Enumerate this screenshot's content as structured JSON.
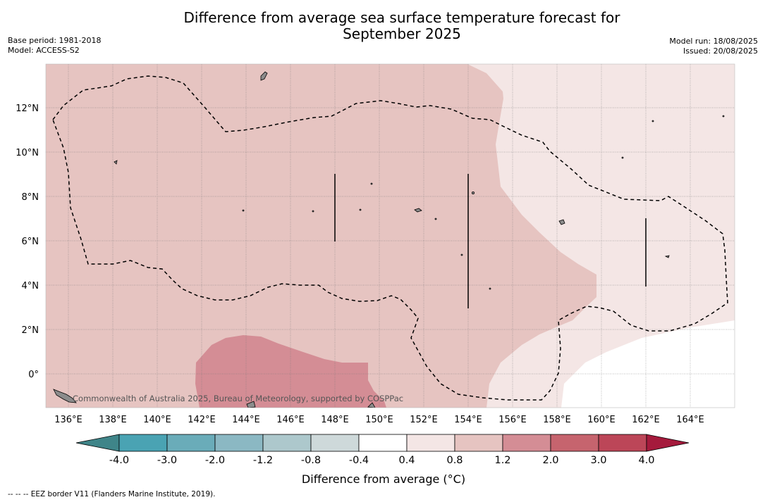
{
  "header": {
    "title_line1": "Difference from average sea surface temperature forecast for",
    "title_line2": "September 2025",
    "base_period": "Base period: 1981-2018",
    "model": "Model: ACCESS-S2",
    "model_run": "Model run: 18/08/2025",
    "issued": "Issued: 20/08/2025"
  },
  "map": {
    "lat_labels": [
      "12°N",
      "10°N",
      "8°N",
      "6°N",
      "4°N",
      "2°N",
      "0°"
    ],
    "lon_labels": [
      "136°E",
      "138°E",
      "140°E",
      "142°E",
      "144°E",
      "146°E",
      "148°E",
      "150°E",
      "152°E",
      "154°E",
      "156°E",
      "158°E",
      "160°E",
      "162°E",
      "164°E"
    ],
    "copyright": "Commonwealth of Australia 2025, Bureau of Meteorology, supported by COSPPac",
    "colors": {
      "anomaly_0_4_to_0_8": "#f4e6e5",
      "anomaly_0_8_to_1_2": "#e6c4c1",
      "anomaly_1_2_to_2_0": "#d48d95",
      "land": "#8c8c8c",
      "eez_border": "#000000"
    }
  },
  "colorbar": {
    "tick_labels": [
      "-4.0",
      "-3.0",
      "-2.0",
      "-1.2",
      "-0.8",
      "-0.4",
      "0.4",
      "0.8",
      "1.2",
      "2.0",
      "3.0",
      "4.0"
    ],
    "colors": [
      "#3f8589",
      "#4aa3b3",
      "#6aacb9",
      "#8bb8c3",
      "#adc8cc",
      "#ced9da",
      "#ffffff",
      "#f4e6e5",
      "#e6c4c1",
      "#d48d95",
      "#c6646e",
      "#bc4658",
      "#a51a3c"
    ],
    "label": "Difference from average (°C)"
  },
  "legend": {
    "footnote": "--  --  -- EEZ border V11 (Flanders Marine Institute, 2019)."
  }
}
